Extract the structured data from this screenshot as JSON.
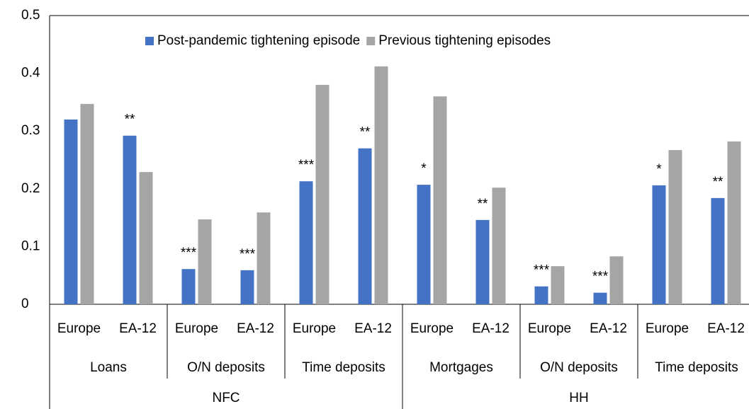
{
  "chart_data": {
    "type": "bar",
    "categories": [
      [
        "NFC",
        "Loans",
        "Europe"
      ],
      [
        "NFC",
        "Loans",
        "EA-12"
      ],
      [
        "NFC",
        "O/N deposits",
        "Europe"
      ],
      [
        "NFC",
        "O/N deposits",
        "EA-12"
      ],
      [
        "NFC",
        "Time deposits",
        "Europe"
      ],
      [
        "NFC",
        "Time deposits",
        "EA-12"
      ],
      [
        "HH",
        "Mortgages",
        "Europe"
      ],
      [
        "HH",
        "Mortgages",
        "EA-12"
      ],
      [
        "HH",
        "O/N deposits",
        "Europe"
      ],
      [
        "HH",
        "O/N deposits",
        "EA-12"
      ],
      [
        "HH",
        "Time deposits",
        "Europe"
      ],
      [
        "HH",
        "Time deposits",
        "EA-12"
      ]
    ],
    "series": [
      {
        "name": "Post-pandemic tightening episode",
        "color": "#4472c4",
        "values": [
          0.32,
          0.292,
          0.061,
          0.059,
          0.213,
          0.27,
          0.207,
          0.146,
          0.031,
          0.02,
          0.206,
          0.184
        ],
        "significance": [
          null,
          "**",
          "***",
          "***",
          "***",
          "**",
          "*",
          "**",
          "***",
          "***",
          "*",
          "**"
        ]
      },
      {
        "name": "Previous tightening episodes",
        "color": "#a5a5a5",
        "values": [
          0.347,
          0.229,
          0.147,
          0.159,
          0.38,
          0.412,
          0.36,
          0.202,
          0.066,
          0.083,
          0.267,
          0.282
        ]
      }
    ],
    "ylim": [
      0,
      0.5
    ],
    "yticks": [
      0,
      0.1,
      0.2,
      0.3,
      0.4,
      0.5
    ],
    "grid": false,
    "legend": "top"
  }
}
